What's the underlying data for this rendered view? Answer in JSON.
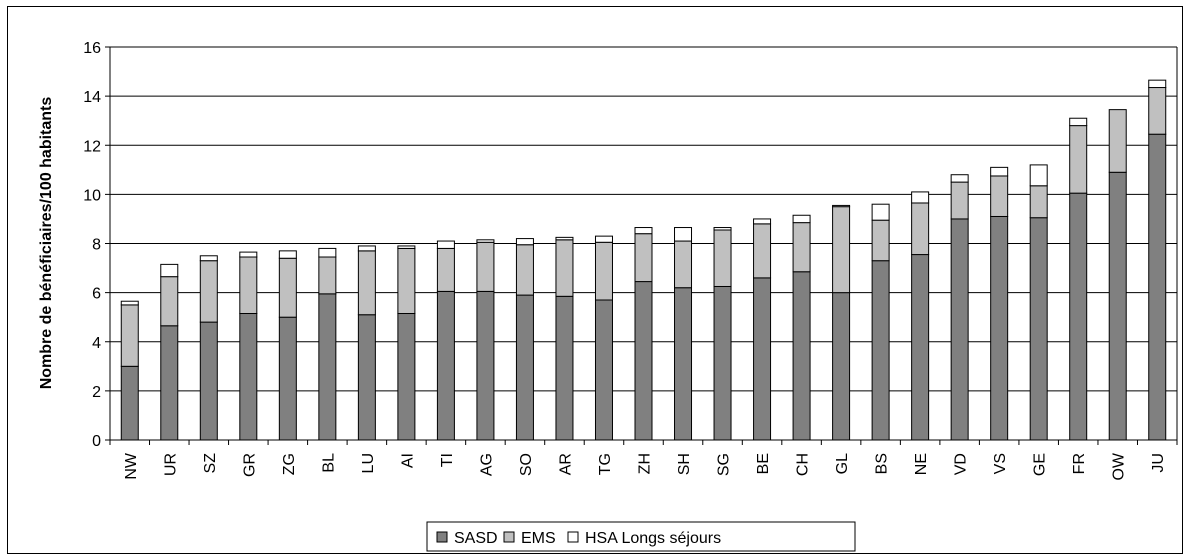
{
  "chart_data": {
    "type": "bar",
    "stacked": true,
    "title": "",
    "xlabel": "",
    "ylabel": "Nombre de bénéficiaires/100 habitants",
    "ylim": [
      0,
      16
    ],
    "yticks": [
      0,
      2,
      4,
      6,
      8,
      10,
      12,
      14,
      16
    ],
    "grid": true,
    "legend_position": "bottom",
    "categories": [
      "NW",
      "UR",
      "SZ",
      "GR",
      "ZG",
      "BL",
      "LU",
      "AI",
      "TI",
      "AG",
      "SO",
      "AR",
      "TG",
      "ZH",
      "SH",
      "SG",
      "BE",
      "CH",
      "GL",
      "BS",
      "NE",
      "VD",
      "VS",
      "GE",
      "FR",
      "OW",
      "JU"
    ],
    "series": [
      {
        "name": "SASD",
        "color": "#808080",
        "values": [
          3.0,
          4.65,
          4.8,
          5.15,
          5.0,
          5.95,
          5.1,
          5.15,
          6.05,
          6.05,
          5.9,
          5.85,
          5.7,
          6.45,
          6.2,
          6.25,
          6.6,
          6.85,
          6.0,
          7.3,
          7.55,
          9.0,
          9.1,
          9.05,
          10.05,
          10.9,
          12.45
        ]
      },
      {
        "name": "EMS",
        "color": "#c0c0c0",
        "values": [
          2.5,
          2.0,
          2.5,
          2.3,
          2.4,
          1.5,
          2.6,
          2.65,
          1.75,
          2.0,
          2.05,
          2.3,
          2.35,
          1.95,
          1.9,
          2.3,
          2.2,
          2.0,
          3.5,
          1.65,
          2.1,
          1.5,
          1.65,
          1.3,
          2.75,
          2.55,
          1.9
        ]
      },
      {
        "name": "HSA Longs séjours",
        "color": "#ffffff",
        "values": [
          0.15,
          0.5,
          0.2,
          0.2,
          0.3,
          0.35,
          0.2,
          0.1,
          0.3,
          0.1,
          0.25,
          0.1,
          0.25,
          0.25,
          0.55,
          0.1,
          0.2,
          0.3,
          0.05,
          0.65,
          0.45,
          0.3,
          0.35,
          0.85,
          0.3,
          0.0,
          0.3
        ]
      }
    ]
  }
}
